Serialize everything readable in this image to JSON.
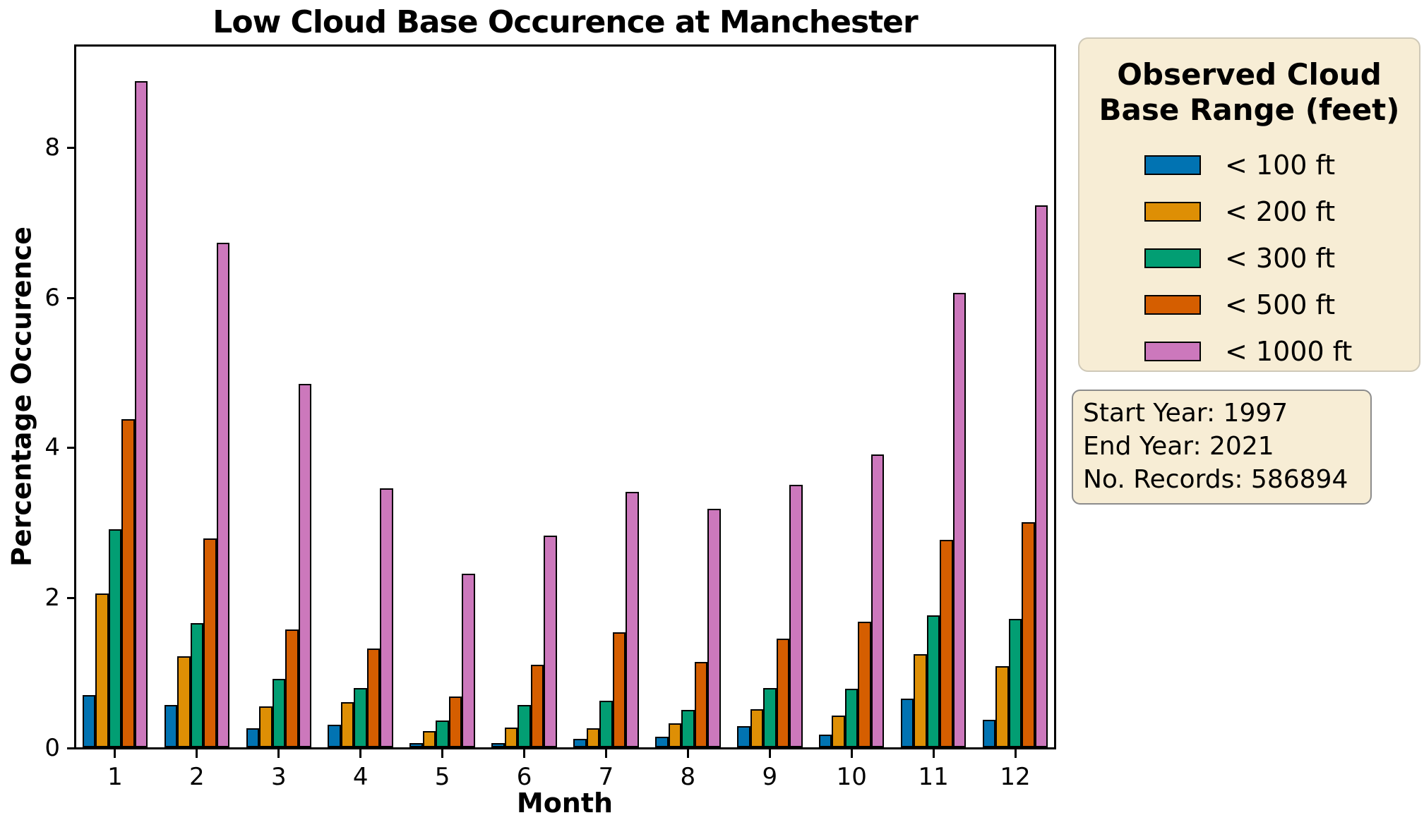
{
  "figure": {
    "title": "Low Cloud Base Occurence at Manchester",
    "xlabel": "Month",
    "ylabel": "Percentage Occurence"
  },
  "axes": {
    "y_ticks": [
      0,
      2,
      4,
      6,
      8
    ],
    "x_ticks": [
      "1",
      "2",
      "3",
      "4",
      "5",
      "6",
      "7",
      "8",
      "9",
      "10",
      "11",
      "12"
    ]
  },
  "chart_data": {
    "type": "bar",
    "title": "Low Cloud Base Occurence at Manchester",
    "xlabel": "Month",
    "ylabel": "Percentage Occurence",
    "categories": [
      1,
      2,
      3,
      4,
      5,
      6,
      7,
      8,
      9,
      10,
      11,
      12
    ],
    "series": [
      {
        "name": "< 100 ft",
        "color": "#0173B2",
        "values": [
          0.7,
          0.56,
          0.25,
          0.3,
          0.06,
          0.06,
          0.11,
          0.14,
          0.28,
          0.17,
          0.65,
          0.37
        ]
      },
      {
        "name": "< 200 ft",
        "color": "#DE8F05",
        "values": [
          2.05,
          1.21,
          0.55,
          0.6,
          0.22,
          0.26,
          0.25,
          0.32,
          0.51,
          0.42,
          1.24,
          1.08
        ]
      },
      {
        "name": "< 300 ft",
        "color": "#029E73",
        "values": [
          2.9,
          1.65,
          0.91,
          0.79,
          0.36,
          0.56,
          0.62,
          0.5,
          0.79,
          0.78,
          1.76,
          1.71
        ]
      },
      {
        "name": "< 500 ft",
        "color": "#D55E00",
        "values": [
          4.37,
          2.78,
          1.57,
          1.32,
          0.68,
          1.1,
          1.53,
          1.14,
          1.45,
          1.67,
          2.76,
          3.0
        ]
      },
      {
        "name": "< 1000 ft",
        "color": "#CC78BC",
        "values": [
          8.87,
          6.72,
          4.84,
          3.45,
          2.31,
          2.82,
          3.4,
          3.18,
          3.5,
          3.9,
          6.05,
          7.22
        ]
      }
    ],
    "ylim": [
      0,
      9.39
    ],
    "grid": false,
    "legend_position": "outside-right"
  },
  "legend": {
    "title_line1": "Observed Cloud",
    "title_line2": "Base Range (feet)",
    "bg_color": "#F7EDD5"
  },
  "info_box": {
    "line1": "Start Year: 1997",
    "line2": "End Year: 2021",
    "line3": "No. Records: 586894",
    "bg_color": "#F7EDD5"
  }
}
